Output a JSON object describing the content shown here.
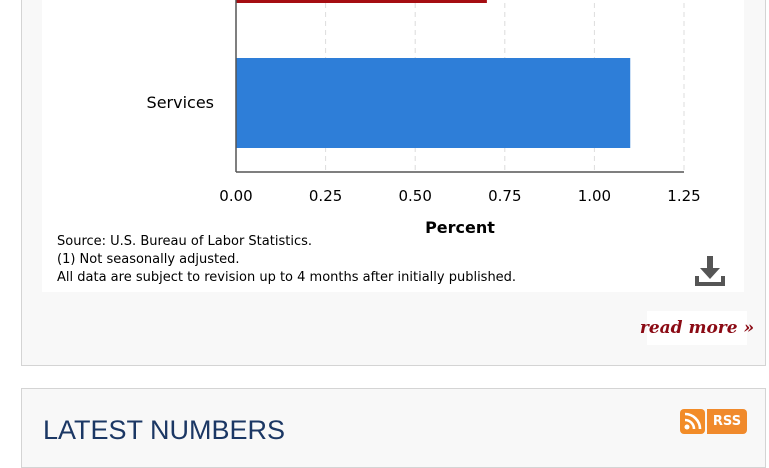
{
  "chart_data": {
    "type": "bar",
    "orientation": "horizontal",
    "categories": [
      "",
      "Services"
    ],
    "series": [
      {
        "values": [
          0.7,
          1.1
        ],
        "colors": [
          "#a50d12",
          "#2e7ed8"
        ]
      }
    ],
    "xlabel": "Percent",
    "xlim": [
      0,
      1.25
    ],
    "xticks": [
      0.0,
      0.25,
      0.5,
      0.75,
      1.0,
      1.25
    ],
    "xtick_labels": [
      "0.00",
      "0.25",
      "0.50",
      "0.75",
      "1.00",
      "1.25"
    ],
    "grid": "vertical-dashed"
  },
  "notes": {
    "source": "Source: U.S. Bureau of Labor Statistics.",
    "footnote": "(1) Not seasonally adjusted.",
    "revision": "All data are subject to revision up to 4 months after initially published."
  },
  "actions": {
    "download_icon": "download-icon",
    "read_more_label": "read more »"
  },
  "latest": {
    "title": "LATEST NUMBERS",
    "rss_label": "RSS",
    "rss_icon": "rss-icon"
  }
}
